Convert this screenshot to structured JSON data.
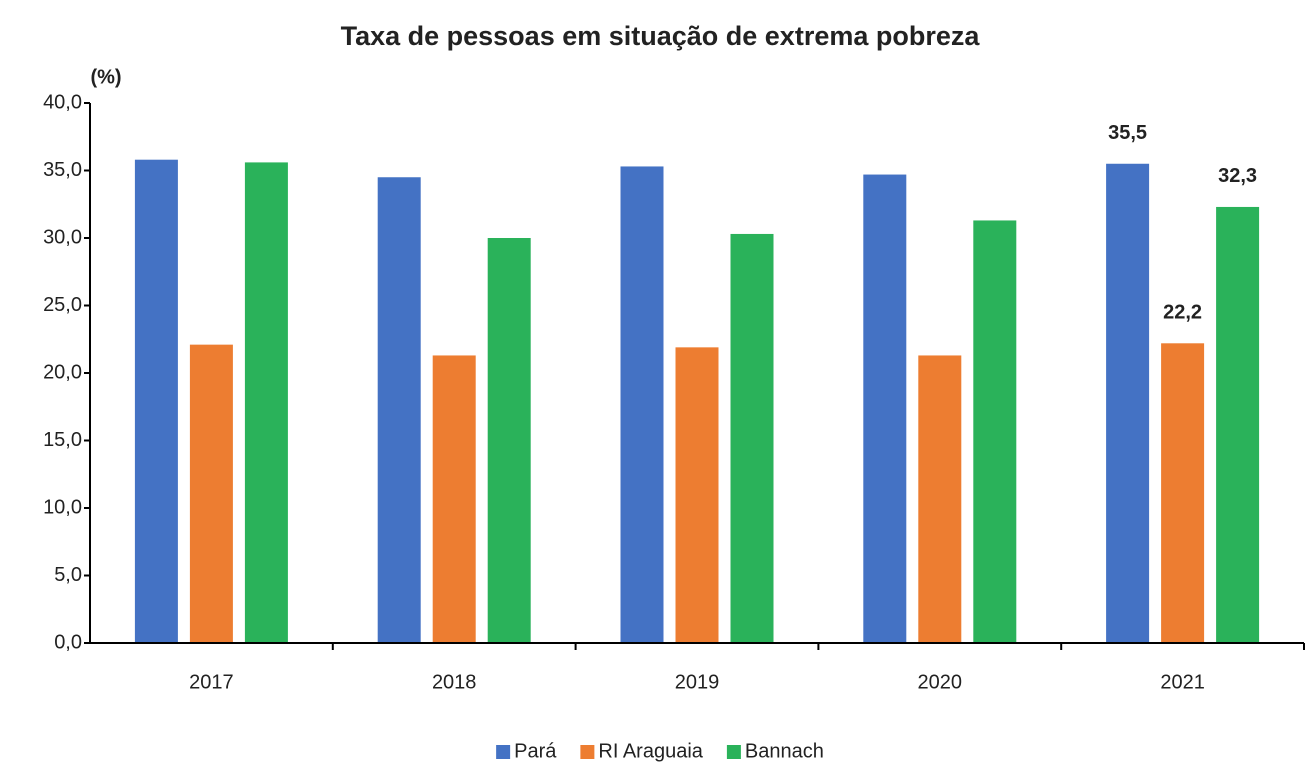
{
  "chart_data": {
    "type": "bar",
    "title": "Taxa de pessoas em situação de extrema pobreza",
    "y_label": "(%)",
    "categories": [
      "2017",
      "2018",
      "2019",
      "2020",
      "2021"
    ],
    "series": [
      {
        "name": "Pará",
        "color": "#4472c4",
        "values": [
          35.8,
          34.5,
          35.3,
          34.7,
          35.5
        ],
        "value_labels": [
          null,
          null,
          null,
          null,
          "35,5"
        ]
      },
      {
        "name": "RI Araguaia",
        "color": "#ed7d31",
        "values": [
          22.1,
          21.3,
          21.9,
          21.3,
          22.2
        ],
        "value_labels": [
          null,
          null,
          null,
          null,
          "22,2"
        ]
      },
      {
        "name": "Bannach",
        "color": "#2ab25a",
        "values": [
          35.6,
          30.0,
          30.3,
          31.3,
          32.3
        ],
        "value_labels": [
          null,
          null,
          null,
          null,
          "32,3"
        ]
      }
    ],
    "ylim": [
      0,
      40
    ],
    "yticks": [
      {
        "value": 0,
        "label": "0,0"
      },
      {
        "value": 5,
        "label": "5,0"
      },
      {
        "value": 10,
        "label": "10,0"
      },
      {
        "value": 15,
        "label": "15,0"
      },
      {
        "value": 20,
        "label": "20,0"
      },
      {
        "value": 25,
        "label": "25,0"
      },
      {
        "value": 30,
        "label": "30,0"
      },
      {
        "value": 35,
        "label": "35,0"
      },
      {
        "value": 40,
        "label": "40,0"
      }
    ],
    "legend": "bottom",
    "grid": false
  }
}
